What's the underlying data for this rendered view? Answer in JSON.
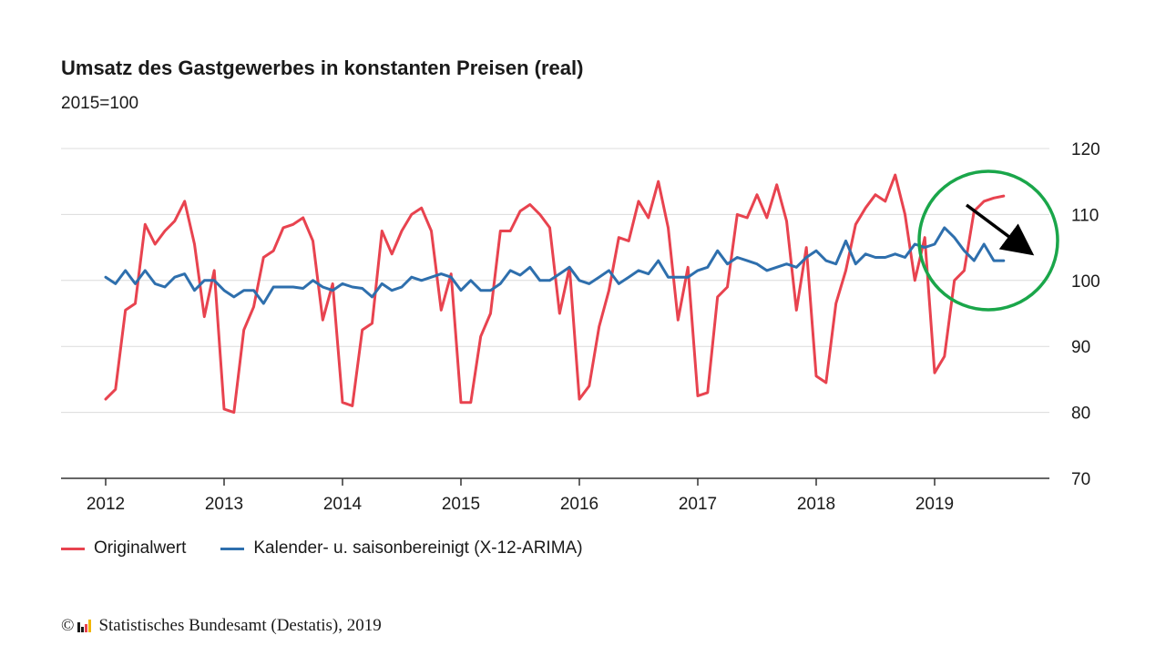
{
  "chart_data": {
    "type": "line",
    "title": "Umsatz des Gastgewerbes in konstanten Preisen (real)",
    "subtitle": "2015=100",
    "x_tick_labels": [
      "2012",
      "2013",
      "2014",
      "2015",
      "2016",
      "2017",
      "2018",
      "2019"
    ],
    "y_tick_labels": [
      "70",
      "80",
      "90",
      "100",
      "110",
      "120"
    ],
    "ylim": [
      70,
      120
    ],
    "x_start": "2012-01",
    "months_per_year": 12,
    "grid": true,
    "legend_position": "bottom-left",
    "series": [
      {
        "name": "Originalwert",
        "color": "#e8434f",
        "values": [
          82,
          83.5,
          95.5,
          96.5,
          108.5,
          105.5,
          107.5,
          109,
          112,
          105.5,
          94.5,
          101.5,
          80.5,
          80,
          92.5,
          96,
          103.5,
          104.5,
          108,
          108.5,
          109.5,
          106,
          94,
          99.5,
          81.5,
          81,
          92.5,
          93.5,
          107.5,
          104,
          107.5,
          110,
          111,
          107.5,
          95.5,
          101,
          81.5,
          81.5,
          91.5,
          95,
          107.5,
          107.5,
          110.5,
          111.5,
          110,
          108,
          95,
          102,
          82,
          84,
          93,
          98.5,
          106.5,
          106,
          112,
          109.5,
          115,
          108,
          94,
          102,
          82.5,
          83,
          97.5,
          99,
          110,
          109.5,
          113,
          109.5,
          114.5,
          109,
          95.5,
          105,
          85.5,
          84.5,
          96.5,
          101.5,
          108.5,
          111,
          113,
          112,
          116,
          110,
          100,
          106.5,
          86,
          88.5,
          100,
          101.5,
          110.5,
          112,
          112.5,
          112.8
        ]
      },
      {
        "name": "Kalender- u. saisonbereinigt (X-12-ARIMA)",
        "color": "#2e6fad",
        "values": [
          100.5,
          99.5,
          101.5,
          99.5,
          101.5,
          99.5,
          99,
          100.5,
          101,
          98.5,
          100,
          100,
          98.5,
          97.5,
          98.5,
          98.5,
          96.5,
          99,
          99,
          99,
          98.8,
          100,
          99,
          98.5,
          99.5,
          99,
          98.8,
          97.5,
          99.5,
          98.5,
          99,
          100.5,
          100,
          100.5,
          101,
          100.5,
          98.5,
          100,
          98.5,
          98.5,
          99.5,
          101.5,
          100.8,
          102,
          100,
          100,
          101,
          102,
          100,
          99.5,
          100.5,
          101.5,
          99.5,
          100.5,
          101.5,
          101,
          103,
          100.5,
          100.5,
          100.5,
          101.5,
          102,
          104.5,
          102.5,
          103.5,
          103,
          102.5,
          101.5,
          102,
          102.5,
          102,
          103.5,
          104.5,
          103,
          102.5,
          106,
          102.5,
          104,
          103.5,
          103.5,
          104,
          103.5,
          105.5,
          105,
          105.5,
          108,
          106.5,
          104.5,
          103,
          105.5,
          103,
          103
        ]
      }
    ]
  },
  "annotation": {
    "circle_color": "#1aa64a",
    "arrow_color": "#000000"
  },
  "legend": [
    {
      "label": "Originalwert",
      "color": "#e8434f"
    },
    {
      "label": "Kalender- u. saisonbereinigt (X-12-ARIMA)",
      "color": "#2e6fad"
    }
  ],
  "footer": {
    "copyright": "©",
    "source": "Statistisches Bundesamt (Destatis), 2019",
    "logo_colors": [
      "#1a1a1a",
      "#1a1a1a",
      "#e8434f",
      "#f2b705"
    ]
  }
}
